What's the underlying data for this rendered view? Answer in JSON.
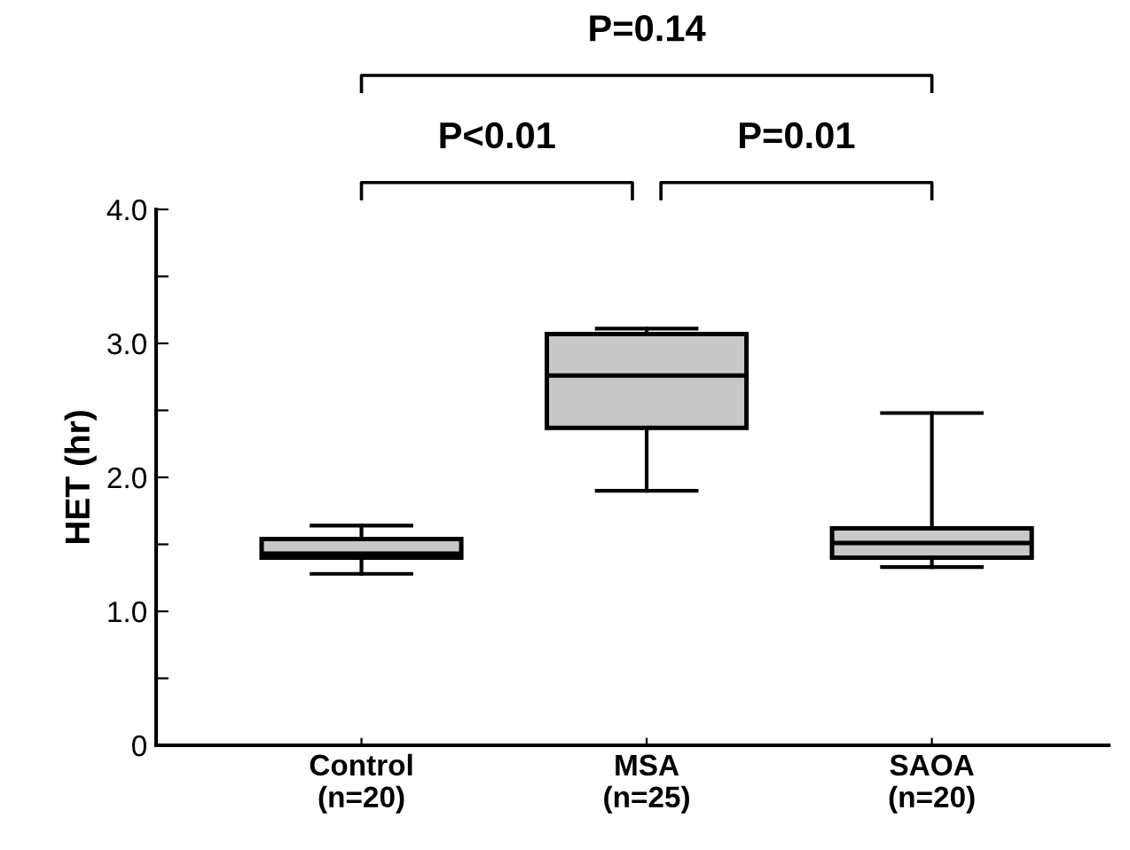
{
  "chart_data": {
    "type": "box",
    "ylabel": "HET (hr)",
    "categories": [
      "Control\n(n=20)",
      "MSA\n(n=25)",
      "SAOA\n(n=20)"
    ],
    "boxes": [
      {
        "low": 1.28,
        "q1": 1.4,
        "median": 1.43,
        "q3": 1.54,
        "high": 1.64
      },
      {
        "low": 1.9,
        "q1": 2.37,
        "median": 2.76,
        "q3": 3.07,
        "high": 3.11
      },
      {
        "low": 1.33,
        "q1": 1.4,
        "median": 1.51,
        "q3": 1.62,
        "high": 2.48
      }
    ],
    "color": "#c8c8c8",
    "ylim": [
      0,
      4.0
    ],
    "yticks": [
      {
        "value": 0,
        "label": "0"
      },
      {
        "value": 0.5,
        "label": null
      },
      {
        "value": 1.0,
        "label": "1.0"
      },
      {
        "value": 1.5,
        "label": null
      },
      {
        "value": 2.0,
        "label": "2.0"
      },
      {
        "value": 2.5,
        "label": null
      },
      {
        "value": 3.0,
        "label": "3.0"
      },
      {
        "value": 3.5,
        "label": null
      },
      {
        "value": 4.0,
        "label": "4.0"
      }
    ],
    "annotations": [
      "P=0.14",
      "P<0.01",
      "P=0.01"
    ],
    "grid": false,
    "legend": false
  }
}
